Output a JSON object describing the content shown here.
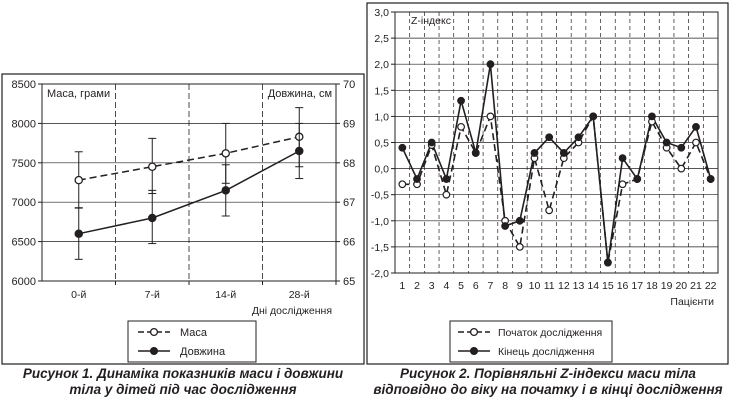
{
  "chart_data": [
    {
      "type": "line",
      "categories": [
        "0-й",
        "7-й",
        "14-й",
        "28-й"
      ],
      "xlabel": "Дні дослідження",
      "ylabel": "Маса, грами",
      "ylabel_right": "Довжина, см",
      "ylim": [
        6000,
        8500
      ],
      "ylim_right": [
        65,
        70
      ],
      "yticks": [
        6000,
        6500,
        7000,
        7500,
        8000,
        8500
      ],
      "yticks_right": [
        65,
        66,
        67,
        68,
        69,
        70
      ],
      "grid": true,
      "legend_position": "bottom",
      "series": [
        {
          "name": "Маса",
          "axis": "left",
          "style": "dashed",
          "marker": "open-circle",
          "values": [
            7280,
            7450,
            7620,
            7830
          ],
          "error_low": [
            6930,
            7110,
            7240,
            7450
          ],
          "error_high": [
            7640,
            7810,
            8000,
            8200
          ]
        },
        {
          "name": "Довжина",
          "axis": "right",
          "style": "solid",
          "marker": "filled-circle",
          "values": [
            66.2,
            66.6,
            67.3,
            68.3
          ],
          "error_low": [
            65.55,
            65.95,
            66.65,
            67.6
          ],
          "error_high": [
            66.85,
            67.3,
            67.95,
            69.0
          ]
        }
      ]
    },
    {
      "type": "line",
      "categories": [
        "1",
        "2",
        "3",
        "4",
        "5",
        "6",
        "7",
        "8",
        "9",
        "10",
        "11",
        "12",
        "13",
        "14",
        "15",
        "16",
        "17",
        "18",
        "19",
        "20",
        "21",
        "22"
      ],
      "xlabel": "Пацієнти",
      "ylabel": "Z-індекс",
      "ylim": [
        -2.0,
        3.0
      ],
      "yticks": [
        -2.0,
        -1.5,
        -1.0,
        -0.5,
        0.0,
        0.5,
        1.0,
        1.5,
        2.0,
        2.5,
        3.0
      ],
      "ytick_labels": [
        "-2,0",
        "-1,5",
        "-1,0",
        "-0,5",
        "0,0",
        "0,5",
        "1,0",
        "1,5",
        "2,0",
        "2,5",
        "3,0"
      ],
      "grid": true,
      "legend_position": "bottom",
      "series": [
        {
          "name": "Початок дослідження",
          "style": "dashed",
          "marker": "open-circle",
          "values": [
            -0.3,
            -0.3,
            0.45,
            -0.5,
            0.8,
            0.3,
            1.0,
            -1.0,
            -1.5,
            0.2,
            -0.8,
            0.2,
            0.5,
            1.0,
            -1.8,
            -0.3,
            -0.2,
            0.9,
            0.4,
            0.0,
            0.5,
            -0.2
          ]
        },
        {
          "name": "Кінець дослідження",
          "style": "solid",
          "marker": "filled-circle",
          "values": [
            0.4,
            -0.2,
            0.5,
            -0.2,
            1.3,
            0.3,
            2.0,
            -1.1,
            -1.0,
            0.3,
            0.6,
            0.3,
            0.6,
            1.0,
            -1.8,
            0.2,
            -0.2,
            1.0,
            0.5,
            0.4,
            0.8,
            -0.2
          ]
        }
      ]
    }
  ],
  "captions": {
    "fig1_label": "Рисунок 1.",
    "fig1_line1": " Динаміка показників маси і довжини",
    "fig1_line2": "тіла у дітей під час дослідження",
    "fig2_label": "Рисунок 2.",
    "fig2_line1": " Порівняльні Z-індекси маси тіла",
    "fig2_line2": "відповідно до віку на початку і в кінці дослідження"
  },
  "colors": {
    "line": "#231f20",
    "grid": "#231f20",
    "background": "#ffffff"
  }
}
